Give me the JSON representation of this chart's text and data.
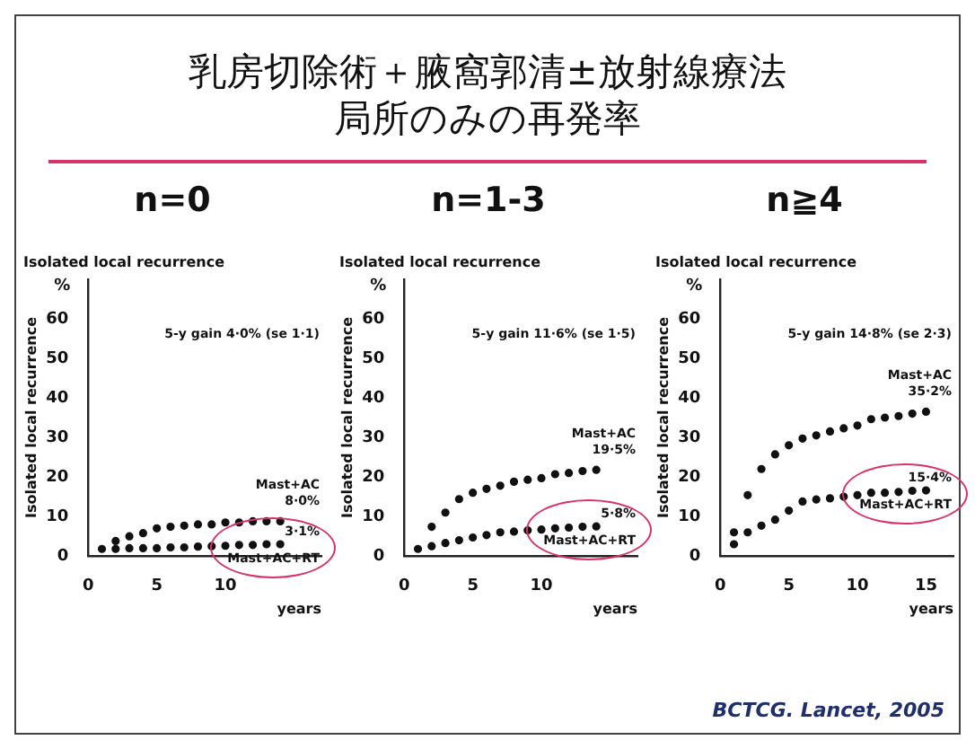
{
  "chart_data": [
    {
      "type": "scatter",
      "title": "n=0",
      "subtitle": "Isolated local recurrence",
      "ylabel": "Isolated local recurrence",
      "xlabel": "years",
      "xlim": [
        0,
        17
      ],
      "xticks": [
        0,
        5,
        10
      ],
      "ylim": [
        0,
        70
      ],
      "yticks": [
        0,
        10,
        20,
        30,
        40,
        50,
        60
      ],
      "marker": "circle",
      "grid": false,
      "legend": false,
      "x": [
        1,
        2,
        3,
        4,
        5,
        6,
        7,
        8,
        9,
        10,
        11,
        12,
        13,
        14
      ],
      "series": [
        {
          "name": "Mast+AC",
          "color": "#111111",
          "values": [
            1.8,
            3.8,
            5,
            5.8,
            7,
            7.4,
            7.7,
            8,
            8,
            8.5,
            8.5,
            8.8,
            8.8,
            8.8
          ]
        },
        {
          "name": "Mast+AC+RT",
          "color": "#111111",
          "values": [
            null,
            1.8,
            2,
            2,
            2,
            2.2,
            2.2,
            2.4,
            2.5,
            2.6,
            2.8,
            2.8,
            3,
            3
          ]
        }
      ],
      "annotations": [
        "乳房切除術＋腋窩郭清±放射線療法",
        "局所のみの再発率",
        "5-y gain 4·0% (se 1·1)",
        "8·0%",
        "3·1%",
        "%"
      ]
    },
    {
      "type": "scatter",
      "title": "n=1-3",
      "subtitle": "Isolated local recurrence",
      "ylabel": "Isolated local recurrence",
      "xlabel": "years",
      "xlim": [
        0,
        17
      ],
      "xticks": [
        0,
        5,
        10
      ],
      "ylim": [
        0,
        70
      ],
      "yticks": [
        0,
        10,
        20,
        30,
        40,
        50,
        60
      ],
      "marker": "circle",
      "grid": false,
      "legend": false,
      "x": [
        1,
        2,
        3,
        4,
        5,
        6,
        7,
        8,
        9,
        10,
        11,
        12,
        13,
        14
      ],
      "series": [
        {
          "name": "Mast+AC",
          "color": "#111111",
          "values": [
            1.8,
            7.4,
            11,
            14.4,
            16,
            17,
            17.8,
            18.8,
            19.3,
            19.7,
            20.7,
            21,
            21.5,
            21.8
          ]
        },
        {
          "name": "Mast+AC+RT",
          "color": "#111111",
          "values": [
            null,
            2.5,
            3.3,
            4,
            4.7,
            5.3,
            6,
            6.2,
            6.5,
            6.7,
            7,
            7.2,
            7.4,
            7.5
          ]
        }
      ],
      "annotations": [
        "5-y gain 11·6% (se 1·5)",
        "19·5%",
        "5·8%",
        "%"
      ]
    },
    {
      "type": "scatter",
      "title": "n≧4",
      "subtitle": "Isolated local recurrence",
      "ylabel": "Isolated local recurrence",
      "xlabel": "years",
      "xlim": [
        0,
        17
      ],
      "xticks": [
        0,
        5,
        10,
        15
      ],
      "ylim": [
        0,
        70
      ],
      "yticks": [
        0,
        10,
        20,
        30,
        40,
        50,
        60
      ],
      "marker": "circle",
      "grid": false,
      "legend": false,
      "x": [
        1,
        2,
        3,
        4,
        5,
        6,
        7,
        8,
        9,
        10,
        11,
        12,
        13,
        14,
        15
      ],
      "series": [
        {
          "name": "Mast+AC",
          "color": "#111111",
          "values": [
            6,
            15.4,
            22,
            25.7,
            28,
            29.7,
            30.5,
            31.5,
            32.3,
            33,
            34.6,
            35,
            35.4,
            36,
            36.5
          ]
        },
        {
          "name": "Mast+AC+RT",
          "color": "#111111",
          "values": [
            3,
            6,
            7.7,
            9.2,
            11.5,
            13.8,
            14.3,
            14.6,
            15,
            15.4,
            16,
            16,
            16.2,
            16.5,
            16.6
          ]
        }
      ],
      "annotations": [
        "5-y gain 14·8% (se 2·3)",
        "35·2%",
        "15·4%",
        "%",
        "BCTCG. Lancet, 2005"
      ]
    }
  ]
}
